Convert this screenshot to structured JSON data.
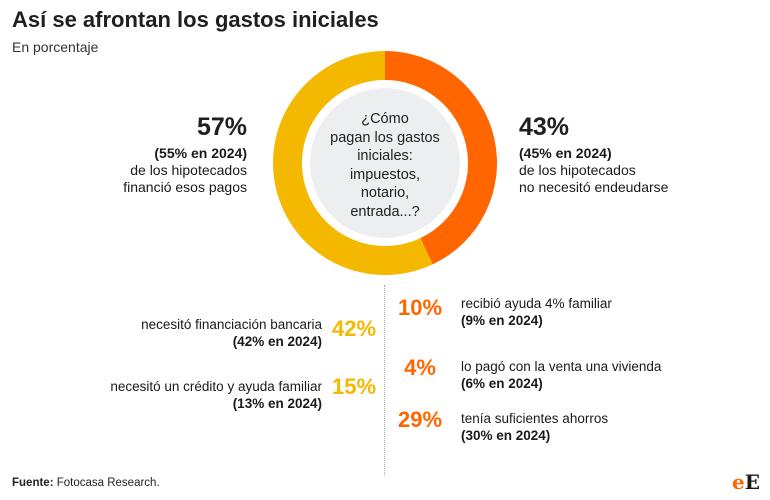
{
  "header": {
    "title": "Así se afrontan los gastos iniciales",
    "subtitle": "En porcentaje"
  },
  "donut": {
    "center_lines": [
      "¿Cómo",
      "pagan los gastos",
      "iniciales:",
      "impuestos,",
      "notario,",
      "entrada...?"
    ],
    "left": {
      "pct": "57%",
      "prev": "(55% en 2024)",
      "desc1": "de los hipotecados",
      "desc2": "financió esos pagos"
    },
    "right": {
      "pct": "43%",
      "prev": "(45% en 2024)",
      "desc1": "de los hipotecados",
      "desc2": "no necesitó endeudarse"
    }
  },
  "breakdown": {
    "left": [
      {
        "label": "necesitó financiación bancaria",
        "prev": "(42% en 2024)",
        "pct": "42%"
      },
      {
        "label": "necesitó un crédito y ayuda familiar",
        "prev": "(13% en 2024)",
        "pct": "15%"
      }
    ],
    "right": [
      {
        "pct": "10%",
        "label": "recibió ayuda 4% familiar",
        "prev": "(9% en 2024)"
      },
      {
        "pct": "4%",
        "label": "lo pagó con la venta una vivienda",
        "prev": "(6% en 2024)"
      },
      {
        "pct": "29%",
        "label": "tenía suficientes ahorros",
        "prev": "(30% en 2024)"
      }
    ]
  },
  "footer": {
    "source_label": "Fuente:",
    "source_text": " Fotocasa Research."
  },
  "logo": {
    "e": "e",
    "E": "E"
  },
  "colors": {
    "financed": "#f5b800",
    "not_financed": "#ff6600",
    "center_fill": "#eceeef"
  },
  "chart_data": {
    "type": "pie",
    "title": "Así se afrontan los gastos iniciales",
    "subtitle": "En porcentaje",
    "categories": [
      "financió esos pagos",
      "no necesitó endeudarse"
    ],
    "values": [
      57,
      43
    ],
    "previous_values_2024": [
      55,
      45
    ],
    "breakdown": {
      "categories": [
        "necesitó financiación bancaria",
        "necesitó un crédito y ayuda familiar",
        "recibió ayuda 4% familiar",
        "lo pagó con la venta una vivienda",
        "tenía suficientes ahorros"
      ],
      "values": [
        42,
        15,
        10,
        4,
        29
      ],
      "previous_values_2024": [
        42,
        13,
        9,
        6,
        30
      ]
    }
  }
}
